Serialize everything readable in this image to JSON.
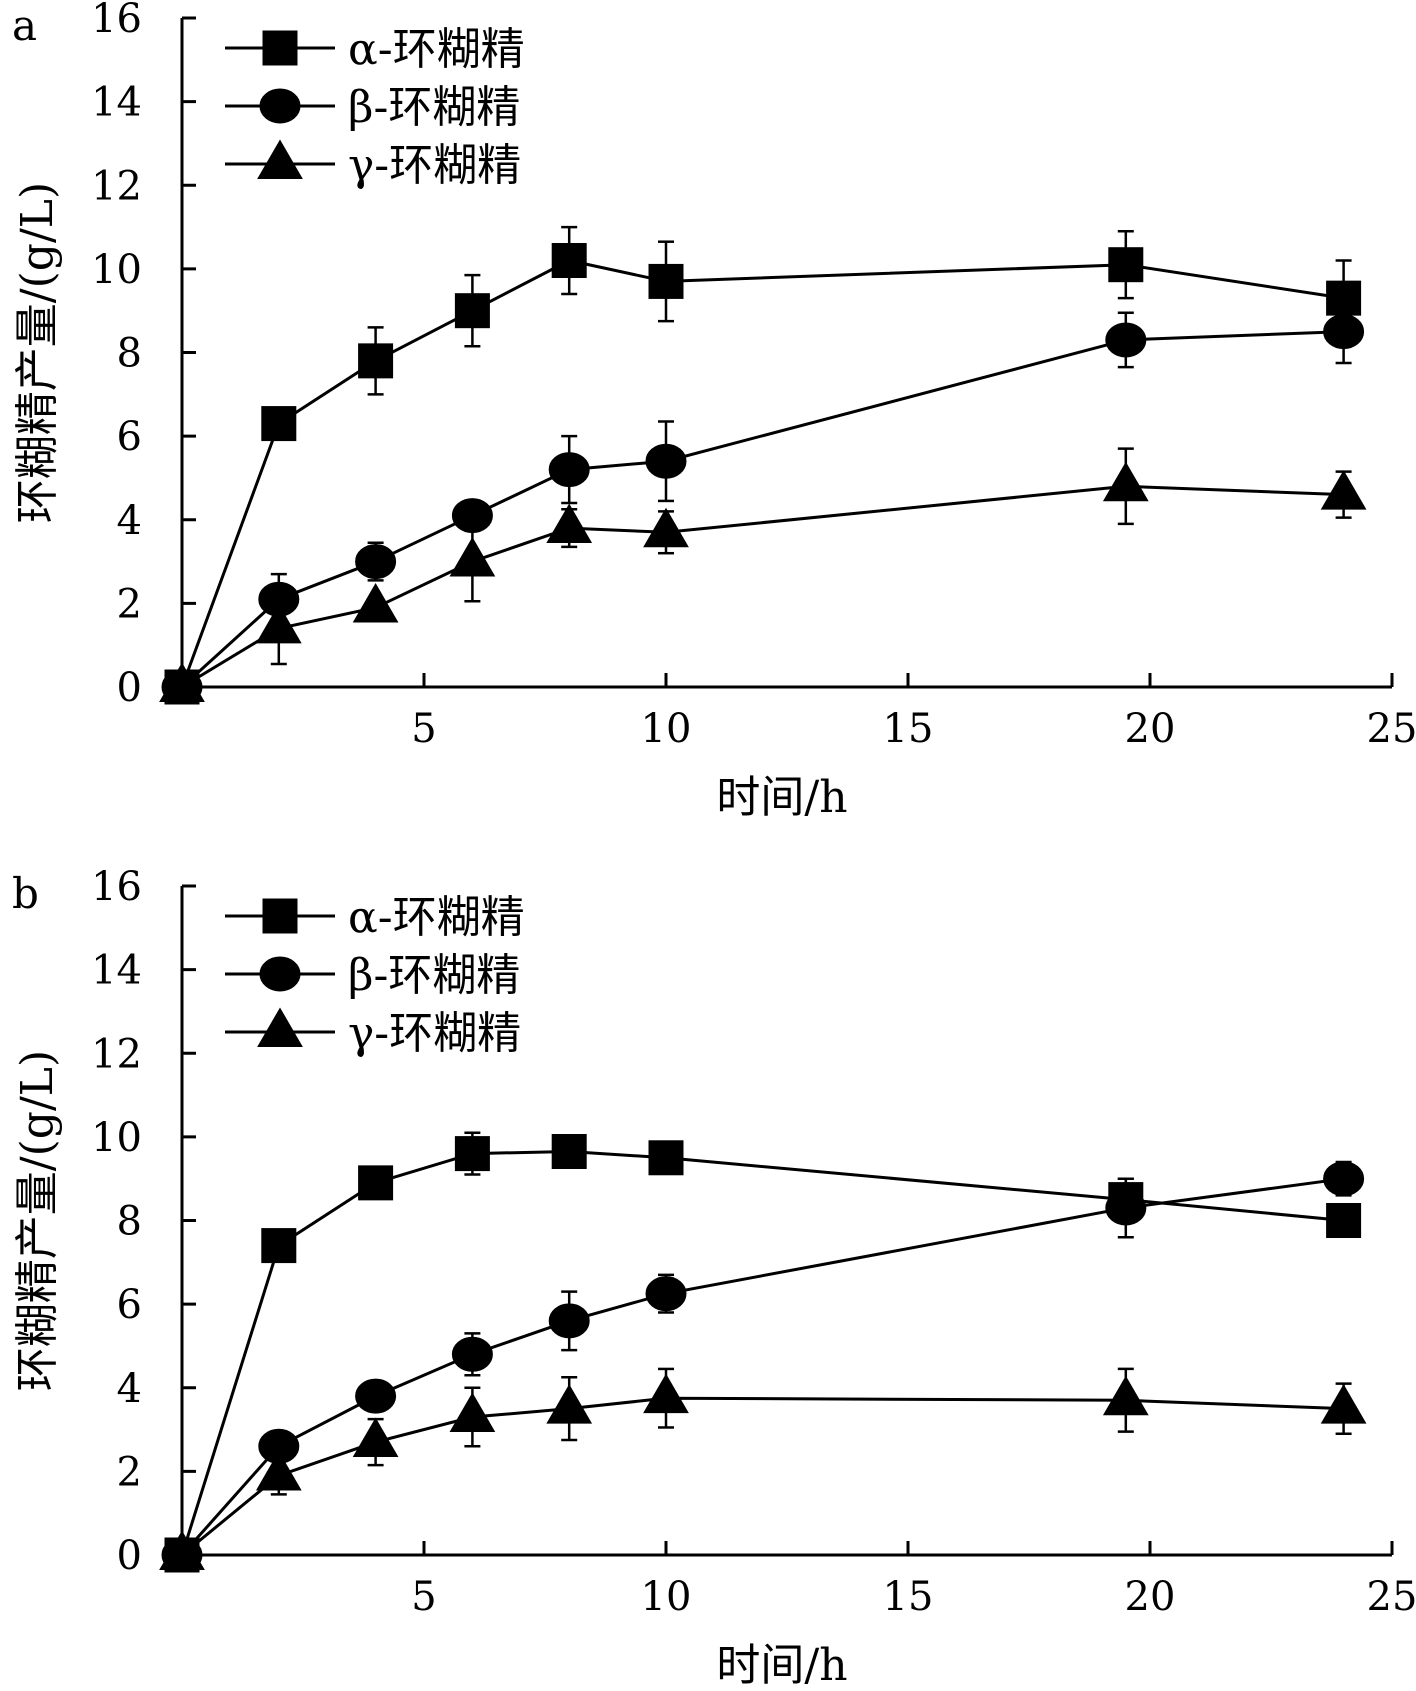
{
  "chart_data": [
    {
      "type": "line",
      "panel_label": "a",
      "xlabel": "时间/h",
      "ylabel": "环糊精产量/(g/L)",
      "xlim": [
        0,
        25
      ],
      "ylim": [
        0,
        16
      ],
      "x_ticks": [
        5,
        10,
        15,
        20,
        25
      ],
      "y_ticks": [
        0,
        2,
        4,
        6,
        8,
        10,
        12,
        14,
        16
      ],
      "grid": false,
      "legend": "top-left",
      "x": [
        0,
        2,
        4,
        6,
        8,
        10,
        19.5,
        24
      ],
      "series": [
        {
          "name": "α-环糊精",
          "marker": "square",
          "values": [
            0,
            6.3,
            7.8,
            9.0,
            10.2,
            9.7,
            10.1,
            9.3
          ],
          "errors": [
            0,
            0,
            0.8,
            0.85,
            0.8,
            0.95,
            0.8,
            0.9
          ]
        },
        {
          "name": "β-环糊精",
          "marker": "circle",
          "values": [
            0,
            2.1,
            3.0,
            4.1,
            5.2,
            5.4,
            8.3,
            8.5
          ],
          "errors": [
            0,
            0.6,
            0.45,
            0,
            0.8,
            0.95,
            0.65,
            0.75
          ]
        },
        {
          "name": "γ-环糊精",
          "marker": "triangle",
          "values": [
            0,
            1.4,
            1.9,
            3.0,
            3.8,
            3.7,
            4.8,
            4.6
          ],
          "errors": [
            0,
            0.85,
            0,
            0.95,
            0.45,
            0.5,
            0.9,
            0.55
          ]
        }
      ]
    },
    {
      "type": "line",
      "panel_label": "b",
      "xlabel": "时间/h",
      "ylabel": "环糊精产量/(g/L)",
      "xlim": [
        0,
        25
      ],
      "ylim": [
        0,
        16
      ],
      "x_ticks": [
        5,
        10,
        15,
        20,
        25
      ],
      "y_ticks": [
        0,
        2,
        4,
        6,
        8,
        10,
        12,
        14,
        16
      ],
      "grid": false,
      "legend": "top-left",
      "x": [
        0,
        2,
        4,
        6,
        8,
        10,
        19.5,
        24
      ],
      "series": [
        {
          "name": "α-环糊精",
          "marker": "square",
          "values": [
            0,
            7.4,
            8.9,
            9.6,
            9.65,
            9.5,
            8.5,
            8.0
          ],
          "errors": [
            0,
            0.35,
            0,
            0.5,
            0.35,
            0,
            0.5,
            0
          ]
        },
        {
          "name": "β-环糊精",
          "marker": "circle",
          "values": [
            0,
            2.6,
            3.8,
            4.8,
            5.6,
            6.25,
            8.3,
            9.0
          ],
          "errors": [
            0,
            0,
            0.35,
            0.5,
            0.7,
            0.45,
            0.7,
            0.4
          ]
        },
        {
          "name": "γ-环糊精",
          "marker": "triangle",
          "values": [
            0,
            1.9,
            2.7,
            3.3,
            3.5,
            3.75,
            3.7,
            3.5
          ],
          "errors": [
            0,
            0.45,
            0.55,
            0.7,
            0.75,
            0.7,
            0.75,
            0.6
          ]
        }
      ]
    }
  ]
}
